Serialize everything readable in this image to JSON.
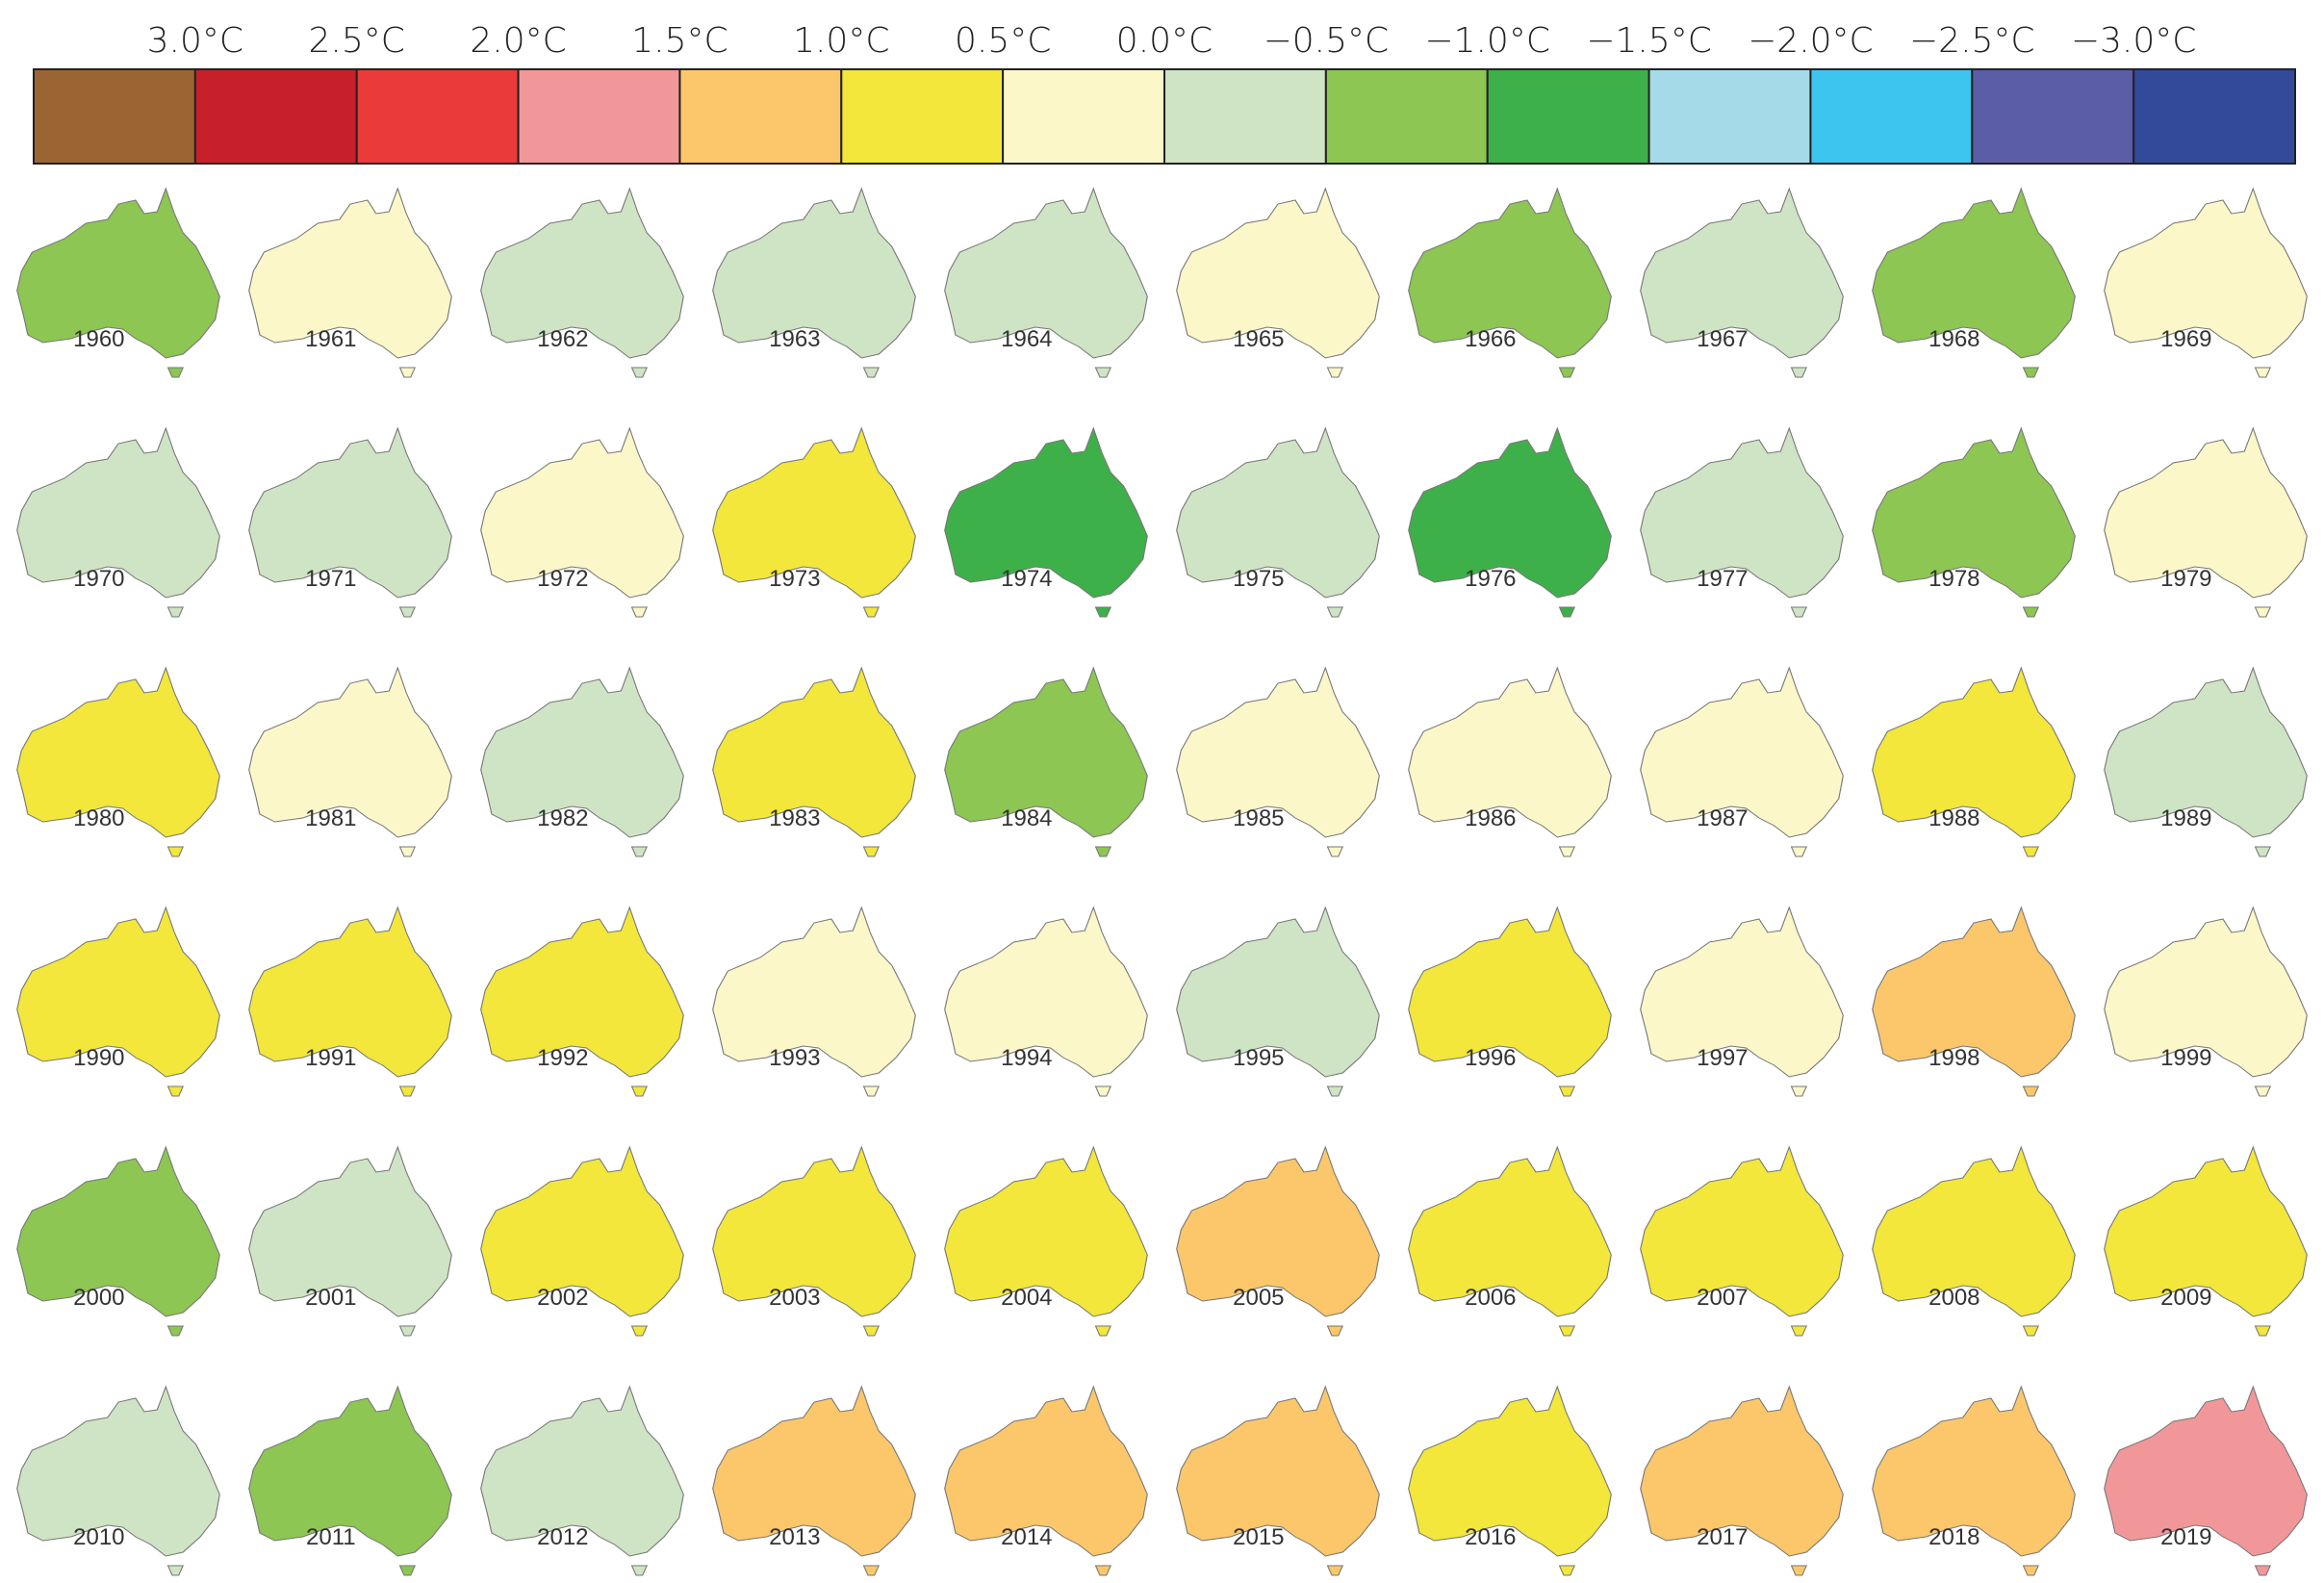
{
  "legend": {
    "labels": [
      "3.0°C",
      "2.5°C",
      "2.0°C",
      "1.5°C",
      "1.0°C",
      "0.5°C",
      "0.0°C",
      "−0.5°C",
      "−1.0°C",
      "−1.5°C",
      "−2.0°C",
      "−2.5°C",
      "−3.0°C"
    ],
    "colors": [
      "#9a6533",
      "#c8202a",
      "#ea3b3a",
      "#f29799",
      "#fbc76a",
      "#f2e73a",
      "#fbf7c9",
      "#cfe4c4",
      "#8dc653",
      "#3eb049",
      "#a5dbe9",
      "#3ec5ef",
      "#5b5ea6",
      "#334a9a"
    ]
  },
  "maps": [
    {
      "year": "1960",
      "fill": "#8dc653"
    },
    {
      "year": "1961",
      "fill": "#fbf7c9"
    },
    {
      "year": "1962",
      "fill": "#cfe4c4"
    },
    {
      "year": "1963",
      "fill": "#cfe4c4"
    },
    {
      "year": "1964",
      "fill": "#cfe4c4"
    },
    {
      "year": "1965",
      "fill": "#fbf7c9"
    },
    {
      "year": "1966",
      "fill": "#8dc653"
    },
    {
      "year": "1967",
      "fill": "#cfe4c4"
    },
    {
      "year": "1968",
      "fill": "#8dc653"
    },
    {
      "year": "1969",
      "fill": "#fbf7c9"
    },
    {
      "year": "1970",
      "fill": "#cfe4c4"
    },
    {
      "year": "1971",
      "fill": "#cfe4c4"
    },
    {
      "year": "1972",
      "fill": "#fbf7c9"
    },
    {
      "year": "1973",
      "fill": "#f2e73a"
    },
    {
      "year": "1974",
      "fill": "#3eb049"
    },
    {
      "year": "1975",
      "fill": "#cfe4c4"
    },
    {
      "year": "1976",
      "fill": "#3eb049"
    },
    {
      "year": "1977",
      "fill": "#cfe4c4"
    },
    {
      "year": "1978",
      "fill": "#8dc653"
    },
    {
      "year": "1979",
      "fill": "#fbf7c9"
    },
    {
      "year": "1980",
      "fill": "#f2e73a"
    },
    {
      "year": "1981",
      "fill": "#fbf7c9"
    },
    {
      "year": "1982",
      "fill": "#cfe4c4"
    },
    {
      "year": "1983",
      "fill": "#f2e73a"
    },
    {
      "year": "1984",
      "fill": "#8dc653"
    },
    {
      "year": "1985",
      "fill": "#fbf7c9"
    },
    {
      "year": "1986",
      "fill": "#fbf7c9"
    },
    {
      "year": "1987",
      "fill": "#fbf7c9"
    },
    {
      "year": "1988",
      "fill": "#f2e73a"
    },
    {
      "year": "1989",
      "fill": "#cfe4c4"
    },
    {
      "year": "1990",
      "fill": "#f2e73a"
    },
    {
      "year": "1991",
      "fill": "#f2e73a"
    },
    {
      "year": "1992",
      "fill": "#f2e73a"
    },
    {
      "year": "1993",
      "fill": "#fbf7c9"
    },
    {
      "year": "1994",
      "fill": "#fbf7c9"
    },
    {
      "year": "1995",
      "fill": "#cfe4c4"
    },
    {
      "year": "1996",
      "fill": "#f2e73a"
    },
    {
      "year": "1997",
      "fill": "#fbf7c9"
    },
    {
      "year": "1998",
      "fill": "#fbc76a"
    },
    {
      "year": "1999",
      "fill": "#fbf7c9"
    },
    {
      "year": "2000",
      "fill": "#8dc653"
    },
    {
      "year": "2001",
      "fill": "#cfe4c4"
    },
    {
      "year": "2002",
      "fill": "#f2e73a"
    },
    {
      "year": "2003",
      "fill": "#f2e73a"
    },
    {
      "year": "2004",
      "fill": "#f2e73a"
    },
    {
      "year": "2005",
      "fill": "#fbc76a"
    },
    {
      "year": "2006",
      "fill": "#f2e73a"
    },
    {
      "year": "2007",
      "fill": "#f2e73a"
    },
    {
      "year": "2008",
      "fill": "#f2e73a"
    },
    {
      "year": "2009",
      "fill": "#f2e73a"
    },
    {
      "year": "2010",
      "fill": "#cfe4c4"
    },
    {
      "year": "2011",
      "fill": "#8dc653"
    },
    {
      "year": "2012",
      "fill": "#cfe4c4"
    },
    {
      "year": "2013",
      "fill": "#fbc76a"
    },
    {
      "year": "2014",
      "fill": "#fbc76a"
    },
    {
      "year": "2015",
      "fill": "#fbc76a"
    },
    {
      "year": "2016",
      "fill": "#f2e73a"
    },
    {
      "year": "2017",
      "fill": "#fbc76a"
    },
    {
      "year": "2018",
      "fill": "#fbc76a"
    },
    {
      "year": "2019",
      "fill": "#f29799"
    }
  ]
}
